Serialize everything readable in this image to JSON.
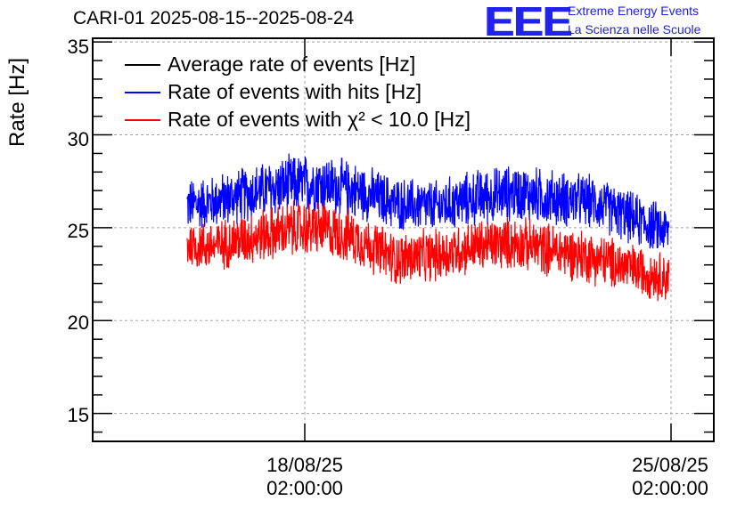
{
  "header": {
    "title": "CARI-01 2025-08-15--2025-08-24"
  },
  "logo": {
    "mark": "EEE",
    "line1": "Extreme Energy Events",
    "line2": "La Scienza nelle Scuole",
    "color": "#2222ee"
  },
  "chart_data": {
    "type": "line",
    "title": "CARI-01 2025-08-15--2025-08-24",
    "xlabel": "",
    "ylabel": "Rate [Hz]",
    "ylim": [
      13.5,
      35.2
    ],
    "yticks": [
      15,
      20,
      25,
      30,
      35
    ],
    "xlim_days_labels": [
      "18/08/25 02:00:00",
      "25/08/25 02:00:00"
    ],
    "xticks": [
      {
        "date": "18/08/25",
        "time": "02:00:00"
      },
      {
        "date": "25/08/25",
        "time": "02:00:00"
      }
    ],
    "grid": true,
    "legend_placement": "top-left",
    "series": [
      {
        "name": "Average rate of events [Hz]",
        "color": "#000000",
        "values": []
      },
      {
        "name": "Rate of events with hits [Hz]",
        "color": "#0000ff",
        "x": [
          "2025-08-15 20:00",
          "2025-08-16 08:00",
          "2025-08-17 02:00",
          "2025-08-17 20:00",
          "2025-08-18 08:00",
          "2025-08-19 02:00",
          "2025-08-19 20:00",
          "2025-08-20 14:00",
          "2025-08-21 08:00",
          "2025-08-22 02:00",
          "2025-08-22 20:00",
          "2025-08-23 14:00",
          "2025-08-24 08:00",
          "2025-08-25 01:00"
        ],
        "values": [
          26.2,
          26.4,
          26.9,
          27.3,
          27.4,
          27.0,
          26.3,
          26.1,
          26.6,
          26.9,
          26.6,
          26.4,
          25.5,
          24.8
        ],
        "band": [
          1.6,
          1.6,
          1.7,
          1.8,
          1.8,
          1.7,
          1.6,
          1.6,
          1.7,
          1.7,
          1.7,
          1.6,
          1.6,
          1.5
        ]
      },
      {
        "name": "Rate of events with χ² < 10.0 [Hz]",
        "color": "#ff0000",
        "x": [
          "2025-08-15 20:00",
          "2025-08-16 08:00",
          "2025-08-17 02:00",
          "2025-08-17 20:00",
          "2025-08-18 08:00",
          "2025-08-19 02:00",
          "2025-08-19 20:00",
          "2025-08-20 14:00",
          "2025-08-21 08:00",
          "2025-08-22 02:00",
          "2025-08-22 20:00",
          "2025-08-23 14:00",
          "2025-08-24 08:00",
          "2025-08-25 01:00"
        ],
        "values": [
          24.1,
          24.0,
          24.5,
          24.9,
          25.0,
          24.4,
          23.3,
          23.5,
          24.0,
          24.2,
          23.8,
          23.4,
          22.8,
          22.3
        ],
        "band": [
          1.5,
          1.5,
          1.6,
          1.7,
          1.7,
          1.6,
          1.6,
          1.6,
          1.6,
          1.6,
          1.6,
          1.6,
          1.5,
          1.5
        ]
      }
    ]
  }
}
